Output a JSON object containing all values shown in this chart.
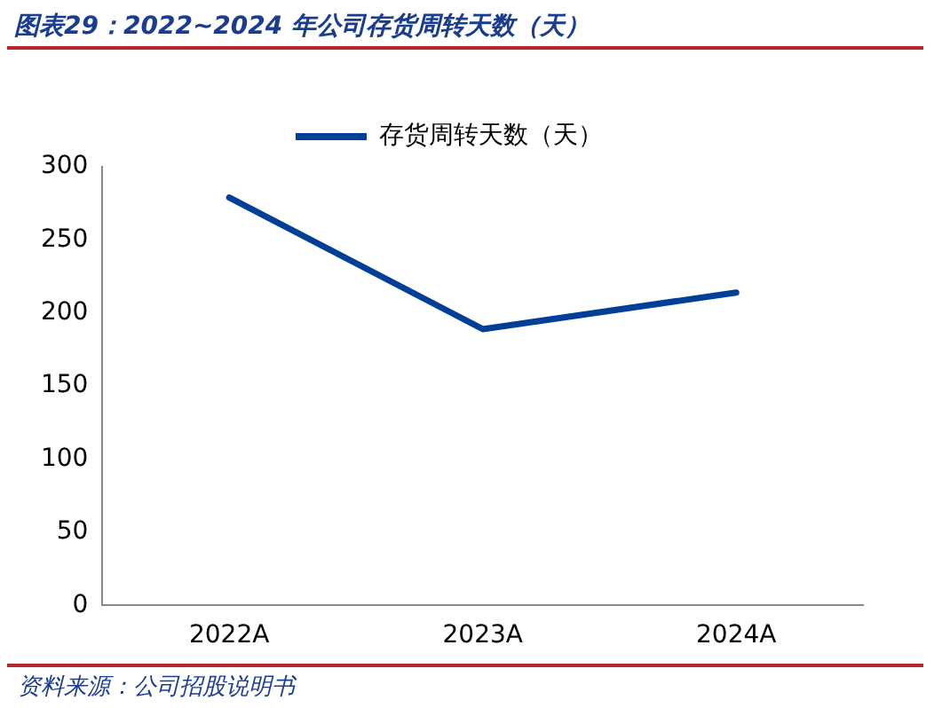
{
  "chart_data": {
    "type": "line",
    "title": "图表29：2022~2024 年公司存货周转天数（天）",
    "categories": [
      "2022A",
      "2023A",
      "2024A"
    ],
    "series": [
      {
        "name": "存货周转天数（天）",
        "color": "#003f98",
        "values": [
          279,
          189,
          214
        ]
      }
    ],
    "ylim": [
      0,
      300
    ],
    "yticks": [
      0,
      50,
      100,
      150,
      200,
      250,
      300
    ],
    "grid": false,
    "legend": "top",
    "marker": "none",
    "annotations": [
      "资料来源：公司招股说明书"
    ]
  }
}
